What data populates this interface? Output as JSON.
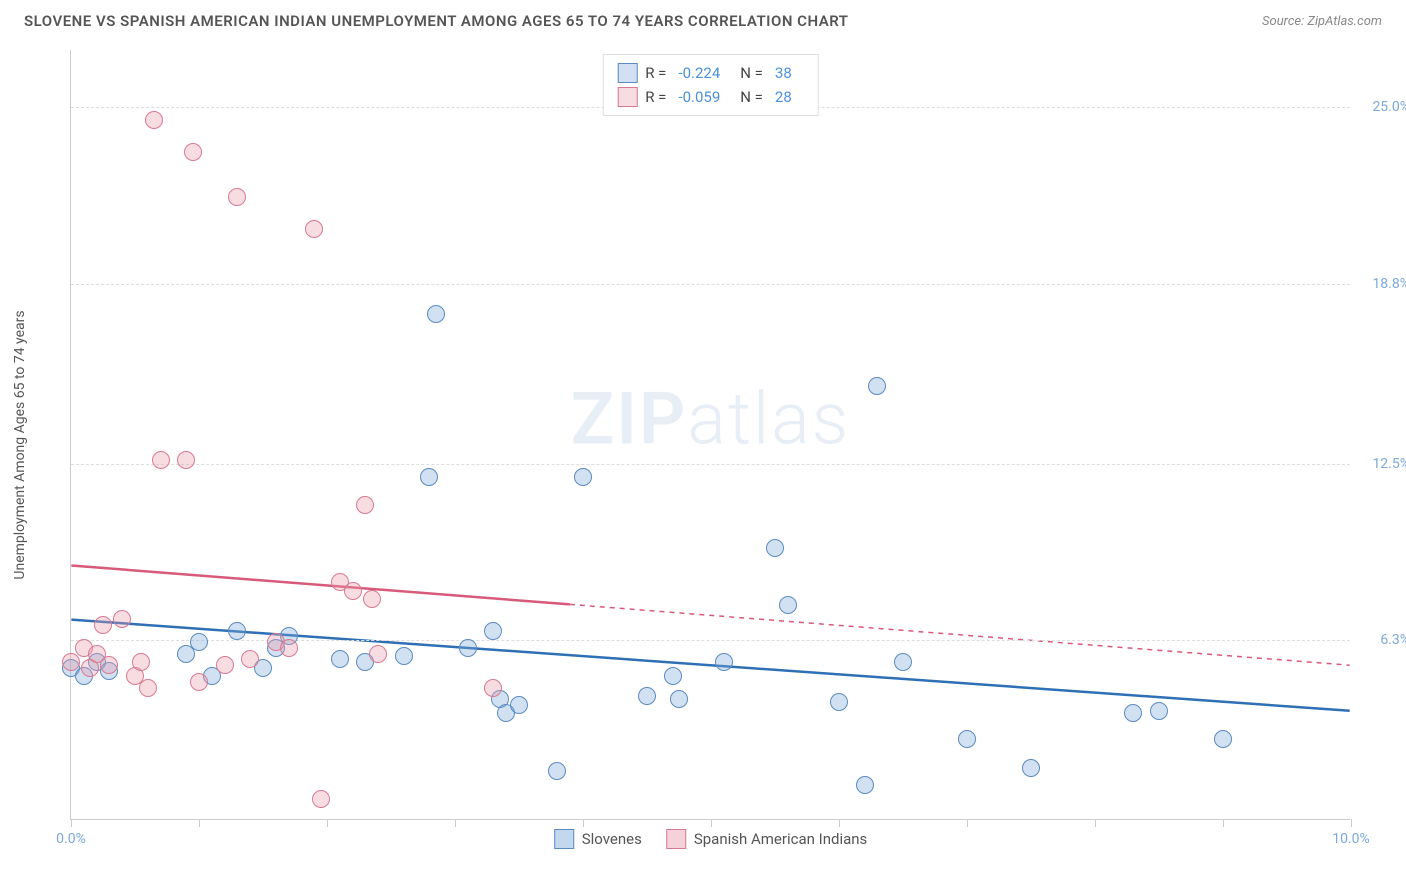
{
  "title": "SLOVENE VS SPANISH AMERICAN INDIAN UNEMPLOYMENT AMONG AGES 65 TO 74 YEARS CORRELATION CHART",
  "source": "Source: ZipAtlas.com",
  "y_axis_label": "Unemployment Among Ages 65 to 74 years",
  "watermark_a": "ZIP",
  "watermark_b": "atlas",
  "chart": {
    "type": "scatter",
    "xlim": [
      0.0,
      10.0
    ],
    "ylim": [
      0.0,
      27.0
    ],
    "x_ticks": [
      0.0,
      1.0,
      2.0,
      3.0,
      4.0,
      5.0,
      6.0,
      7.0,
      8.0,
      9.0,
      10.0
    ],
    "x_tick_labels": {
      "0": "0.0%",
      "10": "10.0%"
    },
    "y_gridlines": [
      6.3,
      12.5,
      18.8,
      25.0
    ],
    "y_labels": [
      "6.3%",
      "12.5%",
      "18.8%",
      "25.0%"
    ],
    "background_color": "#ffffff",
    "grid_color": "#dddddd",
    "axis_color": "#cccccc",
    "point_radius": 9,
    "point_opacity": 0.55,
    "series": [
      {
        "name": "Slovenes",
        "color": "#7ba8d8",
        "fill": "rgba(123,168,216,0.35)",
        "stroke": "#5b8bc0",
        "line_color": "#2f6fb5",
        "r_value": "-0.224",
        "n_value": "38",
        "trend": {
          "x1": 0.0,
          "y1": 7.0,
          "x2": 10.0,
          "y2": 3.8,
          "solid_until": 10.0
        },
        "points": [
          [
            0.0,
            5.3
          ],
          [
            0.1,
            5.0
          ],
          [
            0.2,
            5.5
          ],
          [
            0.3,
            5.2
          ],
          [
            0.9,
            5.8
          ],
          [
            1.0,
            6.2
          ],
          [
            1.1,
            5.0
          ],
          [
            1.3,
            6.6
          ],
          [
            1.5,
            5.3
          ],
          [
            1.6,
            6.0
          ],
          [
            1.7,
            6.4
          ],
          [
            2.1,
            5.6
          ],
          [
            2.3,
            5.5
          ],
          [
            2.6,
            5.7
          ],
          [
            2.8,
            12.0
          ],
          [
            2.85,
            17.7
          ],
          [
            3.1,
            6.0
          ],
          [
            3.3,
            6.6
          ],
          [
            3.35,
            4.2
          ],
          [
            3.4,
            3.7
          ],
          [
            3.5,
            4.0
          ],
          [
            3.8,
            1.7
          ],
          [
            4.0,
            12.0
          ],
          [
            4.5,
            4.3
          ],
          [
            4.7,
            5.0
          ],
          [
            4.75,
            4.2
          ],
          [
            5.1,
            5.5
          ],
          [
            5.5,
            9.5
          ],
          [
            5.6,
            7.5
          ],
          [
            6.0,
            4.1
          ],
          [
            6.2,
            1.2
          ],
          [
            6.3,
            15.2
          ],
          [
            6.5,
            5.5
          ],
          [
            7.0,
            2.8
          ],
          [
            7.5,
            1.8
          ],
          [
            8.3,
            3.7
          ],
          [
            8.5,
            3.8
          ],
          [
            9.0,
            2.8
          ]
        ]
      },
      {
        "name": "Spanish American Indians",
        "color": "#e89aad",
        "fill": "rgba(232,154,173,0.35)",
        "stroke": "#d87a92",
        "line_color": "#d85a7a",
        "r_value": "-0.059",
        "n_value": "28",
        "trend": {
          "x1": 0.0,
          "y1": 8.9,
          "x2": 10.0,
          "y2": 5.4,
          "solid_until": 3.9
        },
        "points": [
          [
            0.0,
            5.5
          ],
          [
            0.1,
            6.0
          ],
          [
            0.15,
            5.3
          ],
          [
            0.2,
            5.8
          ],
          [
            0.25,
            6.8
          ],
          [
            0.3,
            5.4
          ],
          [
            0.4,
            7.0
          ],
          [
            0.5,
            5.0
          ],
          [
            0.55,
            5.5
          ],
          [
            0.6,
            4.6
          ],
          [
            0.65,
            24.5
          ],
          [
            0.7,
            12.6
          ],
          [
            0.9,
            12.6
          ],
          [
            0.95,
            23.4
          ],
          [
            1.0,
            4.8
          ],
          [
            1.2,
            5.4
          ],
          [
            1.3,
            21.8
          ],
          [
            1.4,
            5.6
          ],
          [
            1.6,
            6.2
          ],
          [
            1.7,
            6.0
          ],
          [
            1.9,
            20.7
          ],
          [
            1.95,
            0.7
          ],
          [
            2.1,
            8.3
          ],
          [
            2.2,
            8.0
          ],
          [
            2.3,
            11.0
          ],
          [
            2.35,
            7.7
          ],
          [
            2.4,
            5.8
          ],
          [
            3.3,
            4.6
          ]
        ]
      }
    ]
  },
  "legend_bottom": [
    {
      "label": "Slovenes",
      "fill": "rgba(123,168,216,0.45)",
      "stroke": "#5b8bc0"
    },
    {
      "label": "Spanish American Indians",
      "fill": "rgba(232,154,173,0.45)",
      "stroke": "#d87a92"
    }
  ]
}
